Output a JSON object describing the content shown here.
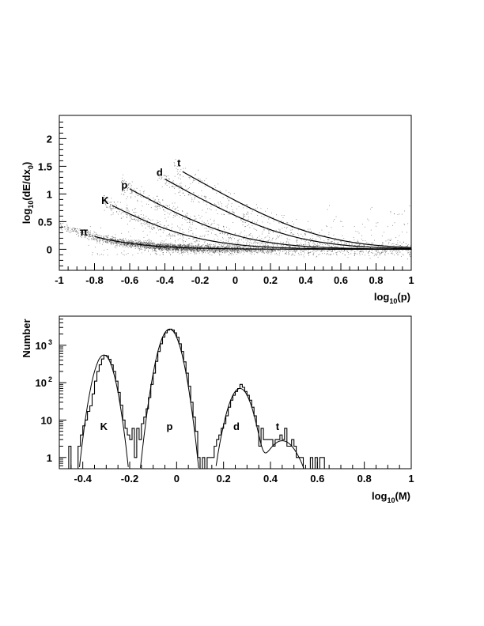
{
  "chart_data": [
    {
      "type": "scatter",
      "xlabel": {
        "base": "log",
        "sub": "10",
        "rest": "(p)"
      },
      "ylabel": {
        "base": "log",
        "sub": "10",
        "mid": "(dE/dx",
        "sub2": "0",
        "rest": ")"
      },
      "xlim": [
        -1,
        1
      ],
      "ylim": [
        -0.38,
        2.42
      ],
      "xticks": [
        -1,
        -0.8,
        -0.6,
        -0.4,
        -0.2,
        0,
        0.2,
        0.4,
        0.6,
        0.8,
        1
      ],
      "xtick_labels": [
        "-1",
        "-0.8",
        "-0.6",
        "-0.4",
        "-0.2",
        "0",
        "0.2",
        "0.4",
        "0.6",
        "0.8",
        "1"
      ],
      "yticks": [
        0,
        0.5,
        1,
        1.5,
        2
      ],
      "ytick_labels": [
        "0",
        "0.5",
        "1",
        "1.5",
        "2"
      ],
      "grid": false,
      "curves": [
        {
          "name": "π",
          "mass": 0.1396,
          "x_start": -0.8,
          "label_x": -0.86,
          "label_y": 0.25
        },
        {
          "name": "K",
          "mass": 0.4937,
          "x_start": -0.7,
          "label_x": -0.74,
          "label_y": 0.82
        },
        {
          "name": "p",
          "mass": 0.9383,
          "x_start": -0.6,
          "label_x": -0.63,
          "label_y": 1.1
        },
        {
          "name": "d",
          "mass": 1.8756,
          "x_start": -0.4,
          "label_x": -0.43,
          "label_y": 1.33
        },
        {
          "name": "t",
          "mass": 2.8089,
          "x_start": -0.3,
          "label_x": -0.32,
          "label_y": 1.5
        }
      ],
      "scatter_counts": {
        "π": 2600,
        "K": 550,
        "p": 550,
        "d": 320,
        "t": 160,
        "background": 350
      }
    },
    {
      "type": "bar",
      "histogram": true,
      "xlabel": {
        "base": "log",
        "sub": "10",
        "rest": "(M)"
      },
      "ylabel": "Number",
      "xlim": [
        -0.5,
        1
      ],
      "ylim": [
        0.5,
        6000
      ],
      "yscale": "log",
      "xticks": [
        -0.4,
        -0.2,
        0,
        0.2,
        0.4,
        0.6,
        0.8,
        1
      ],
      "xtick_labels": [
        "-0.4",
        "-0.2",
        "0",
        "0.2",
        "0.4",
        "0.6",
        "0.8",
        "1"
      ],
      "yticks": [
        {
          "value": 1,
          "base": "1",
          "exp": ""
        },
        {
          "value": 10,
          "base": "10",
          "exp": ""
        },
        {
          "value": 100,
          "base": "10",
          "exp": "2"
        },
        {
          "value": 1000,
          "base": "10",
          "exp": "3"
        }
      ],
      "bin_start": -0.5,
      "bin_width": 0.01,
      "counts": [
        0,
        0,
        0,
        0,
        2,
        0,
        0,
        0,
        2,
        4,
        7,
        10,
        17,
        24,
        50,
        110,
        200,
        300,
        430,
        540,
        520,
        420,
        300,
        200,
        110,
        55,
        25,
        10,
        6,
        4,
        3,
        6,
        1,
        6,
        3,
        8,
        12,
        20,
        40,
        90,
        180,
        370,
        680,
        1100,
        1650,
        2150,
        2550,
        2700,
        2550,
        2150,
        1650,
        1100,
        680,
        360,
        180,
        80,
        30,
        12,
        5,
        1,
        0,
        1,
        0,
        1,
        1,
        1,
        2,
        3,
        4,
        6,
        8,
        13,
        22,
        34,
        46,
        58,
        70,
        90,
        75,
        58,
        46,
        34,
        22,
        13,
        7,
        2,
        6,
        3,
        3,
        3,
        3,
        2,
        3,
        3,
        4,
        3,
        6,
        2,
        2,
        3,
        2,
        1,
        1,
        1,
        0,
        0,
        0,
        1,
        0,
        1,
        0,
        1,
        1,
        0,
        0,
        0,
        0,
        0,
        0,
        0,
        0,
        0,
        0,
        0,
        0,
        0,
        0,
        0,
        0,
        0,
        0,
        0,
        0,
        0,
        0,
        0,
        0,
        0,
        0,
        0,
        0,
        0,
        0,
        0,
        0,
        0,
        0,
        0,
        0,
        0
      ],
      "fit": {
        "components": [
          {
            "name": "K",
            "amplitude": 550,
            "mean": -0.31,
            "sigma": 0.028
          },
          {
            "name": "p",
            "amplitude": 2700,
            "mean": -0.03,
            "sigma": 0.03
          },
          {
            "name": "d",
            "amplitude": 70,
            "mean": 0.27,
            "sigma": 0.033
          },
          {
            "name": "t",
            "amplitude": 2.8,
            "mean": 0.45,
            "sigma": 0.05
          }
        ],
        "x_range": [
          -0.5,
          0.555
        ]
      },
      "peak_labels": [
        {
          "name": "K",
          "x": -0.31,
          "y": 7
        },
        {
          "name": "p",
          "x": -0.03,
          "y": 7
        },
        {
          "name": "d",
          "x": 0.255,
          "y": 7
        },
        {
          "name": "t",
          "x": 0.43,
          "y": 7
        }
      ]
    }
  ]
}
